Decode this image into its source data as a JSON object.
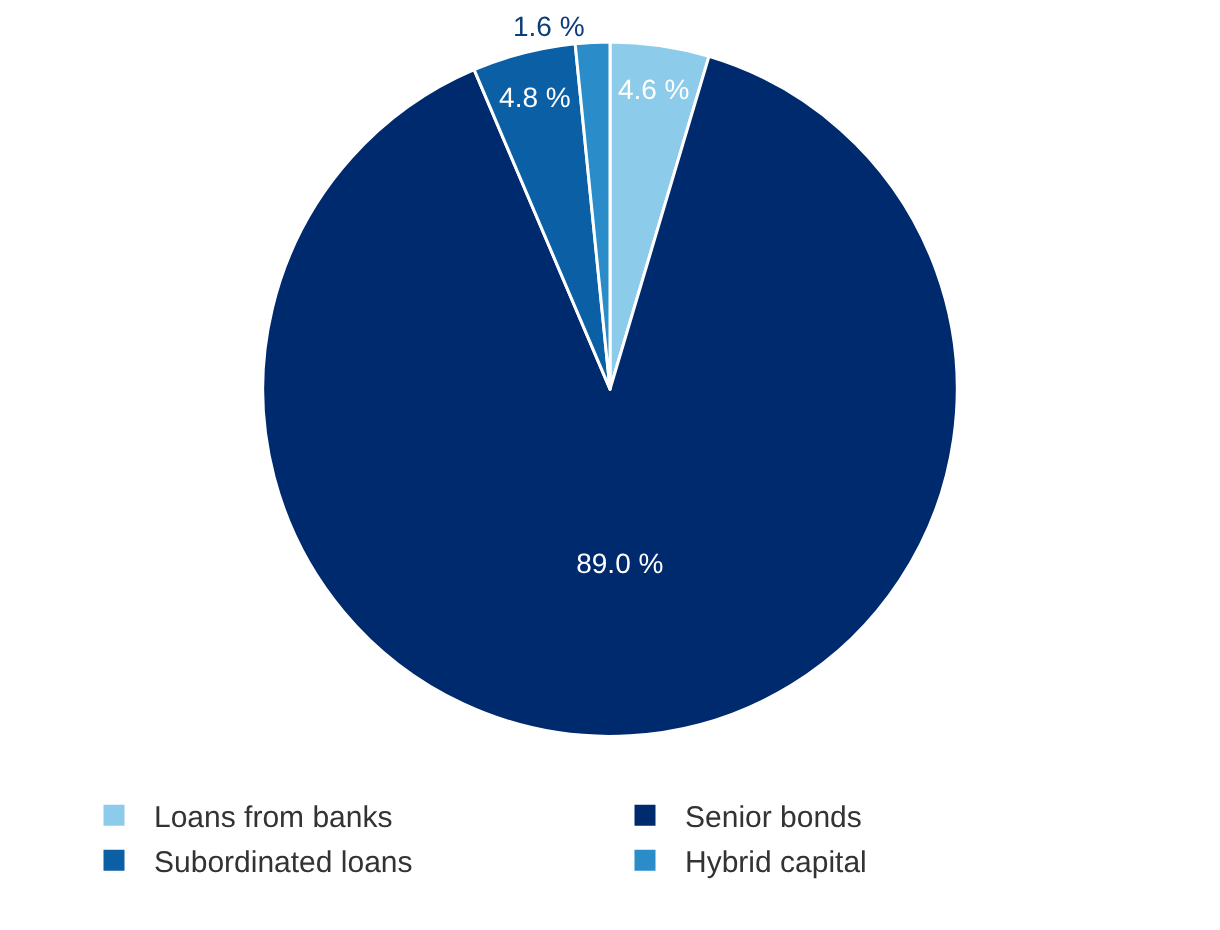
{
  "chart_data": {
    "type": "pie",
    "categories": [
      "Loans from banks",
      "Senior bonds",
      "Subordinated loans",
      "Hybrid capital"
    ],
    "values": [
      4.6,
      89.0,
      4.8,
      1.6
    ],
    "value_labels": [
      "4.6 %",
      "89.0 %",
      "4.8 %",
      "1.6 %"
    ],
    "colors": [
      "#8ccbea",
      "#002a6e",
      "#0b5fa5",
      "#2a8cc8"
    ],
    "legend": "bottom"
  }
}
